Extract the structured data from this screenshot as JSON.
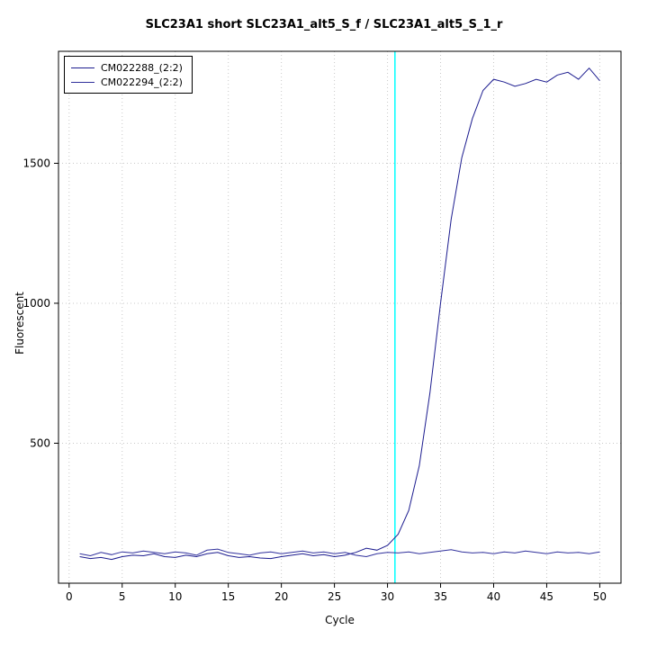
{
  "chart_data": {
    "type": "line",
    "title": "SLC23A1 short SLC23A1_alt5_S_f / SLC23A1_alt5_S_1_r",
    "xlabel": "Cycle",
    "ylabel": "Fluorescent",
    "xlim": [
      -1,
      52
    ],
    "ylim": [
      0,
      1900
    ],
    "x_ticks": [
      0,
      5,
      10,
      15,
      20,
      25,
      30,
      35,
      40,
      45,
      50
    ],
    "y_ticks": [
      500,
      1000,
      1500
    ],
    "grid": true,
    "grid_style": "dotted",
    "grid_color": "#c8c8c8",
    "legend_position": "top-left",
    "threshold_line": {
      "x": 30.7,
      "color": "#00ffff"
    },
    "x": [
      1,
      2,
      3,
      4,
      5,
      6,
      7,
      8,
      9,
      10,
      11,
      12,
      13,
      14,
      15,
      16,
      17,
      18,
      19,
      20,
      21,
      22,
      23,
      24,
      25,
      26,
      27,
      28,
      29,
      30,
      31,
      32,
      33,
      34,
      35,
      36,
      37,
      38,
      39,
      40,
      41,
      42,
      43,
      44,
      45,
      46,
      47,
      48,
      49,
      50
    ],
    "series": [
      {
        "name": "CM022288_(2:2)",
        "color": "#1c1c8f",
        "values": [
          95,
          88,
          92,
          85,
          95,
          100,
          98,
          105,
          95,
          92,
          100,
          95,
          105,
          110,
          98,
          92,
          95,
          90,
          88,
          95,
          100,
          105,
          98,
          102,
          95,
          100,
          110,
          125,
          118,
          135,
          175,
          260,
          420,
          680,
          1000,
          1300,
          1520,
          1660,
          1760,
          1800,
          1790,
          1775,
          1785,
          1800,
          1790,
          1815,
          1825,
          1800,
          1840,
          1795
        ]
      },
      {
        "name": "CM022294_(2:2)",
        "color": "#30309c",
        "values": [
          105,
          98,
          110,
          102,
          112,
          108,
          115,
          110,
          105,
          112,
          108,
          100,
          118,
          122,
          110,
          105,
          100,
          108,
          112,
          105,
          110,
          115,
          108,
          112,
          105,
          110,
          100,
          95,
          105,
          110,
          108,
          112,
          105,
          110,
          115,
          120,
          112,
          108,
          110,
          105,
          112,
          108,
          115,
          110,
          105,
          112,
          108,
          110,
          105,
          112
        ]
      }
    ]
  }
}
